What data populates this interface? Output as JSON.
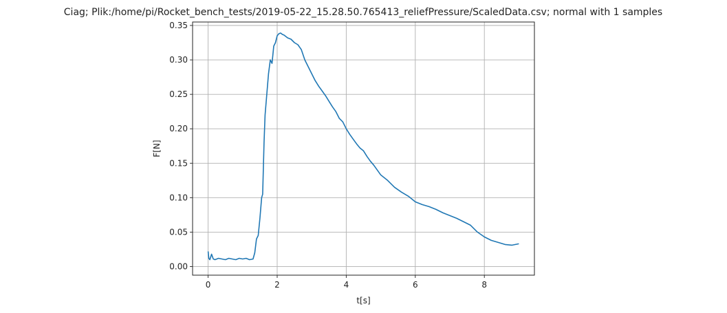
{
  "chart_data": {
    "type": "line",
    "title": "Ciag; Plik:/home/pi/Rocket_bench_tests/2019-05-22_15.28.50.765413_reliefPressure/ScaledData.csv; normal with 1 samples",
    "xlabel": "t[s]",
    "ylabel": "F[N]",
    "xlim": [
      -0.45,
      9.45
    ],
    "ylim": [
      -0.0125,
      0.355
    ],
    "xticks": [
      0,
      2,
      4,
      6,
      8
    ],
    "yticks": [
      0.0,
      0.05,
      0.1,
      0.15,
      0.2,
      0.25,
      0.3,
      0.35
    ],
    "xtick_labels": [
      "0",
      "2",
      "4",
      "6",
      "8"
    ],
    "ytick_labels": [
      "0.00",
      "0.05",
      "0.10",
      "0.15",
      "0.20",
      "0.25",
      "0.30",
      "0.35"
    ],
    "grid": true,
    "series": [
      {
        "color": "#1f77b4",
        "x": [
          0.0,
          0.02,
          0.05,
          0.1,
          0.15,
          0.2,
          0.3,
          0.4,
          0.5,
          0.6,
          0.7,
          0.8,
          0.9,
          1.0,
          1.1,
          1.2,
          1.3,
          1.35,
          1.4,
          1.45,
          1.5,
          1.55,
          1.58,
          1.62,
          1.65,
          1.7,
          1.75,
          1.8,
          1.85,
          1.9,
          1.95,
          2.0,
          2.05,
          2.1,
          2.15,
          2.2,
          2.3,
          2.4,
          2.5,
          2.6,
          2.7,
          2.8,
          2.9,
          3.0,
          3.1,
          3.2,
          3.3,
          3.4,
          3.5,
          3.6,
          3.7,
          3.8,
          3.9,
          4.0,
          4.1,
          4.2,
          4.3,
          4.4,
          4.5,
          4.6,
          4.7,
          4.8,
          4.9,
          5.0,
          5.2,
          5.4,
          5.6,
          5.8,
          6.0,
          6.2,
          6.4,
          6.6,
          6.8,
          7.0,
          7.2,
          7.4,
          7.6,
          7.8,
          8.0,
          8.2,
          8.4,
          8.6,
          8.8,
          9.0
        ],
        "y": [
          0.022,
          0.012,
          0.01,
          0.018,
          0.011,
          0.01,
          0.012,
          0.011,
          0.01,
          0.012,
          0.011,
          0.01,
          0.012,
          0.011,
          0.012,
          0.01,
          0.011,
          0.02,
          0.04,
          0.045,
          0.07,
          0.1,
          0.105,
          0.18,
          0.22,
          0.25,
          0.28,
          0.3,
          0.295,
          0.32,
          0.325,
          0.335,
          0.338,
          0.339,
          0.337,
          0.336,
          0.332,
          0.33,
          0.325,
          0.322,
          0.315,
          0.3,
          0.29,
          0.28,
          0.27,
          0.262,
          0.255,
          0.248,
          0.24,
          0.232,
          0.225,
          0.215,
          0.21,
          0.2,
          0.192,
          0.185,
          0.178,
          0.172,
          0.168,
          0.16,
          0.153,
          0.147,
          0.14,
          0.133,
          0.125,
          0.115,
          0.108,
          0.102,
          0.094,
          0.09,
          0.087,
          0.083,
          0.078,
          0.074,
          0.07,
          0.065,
          0.06,
          0.05,
          0.043,
          0.038,
          0.035,
          0.032,
          0.031,
          0.033
        ]
      }
    ]
  }
}
